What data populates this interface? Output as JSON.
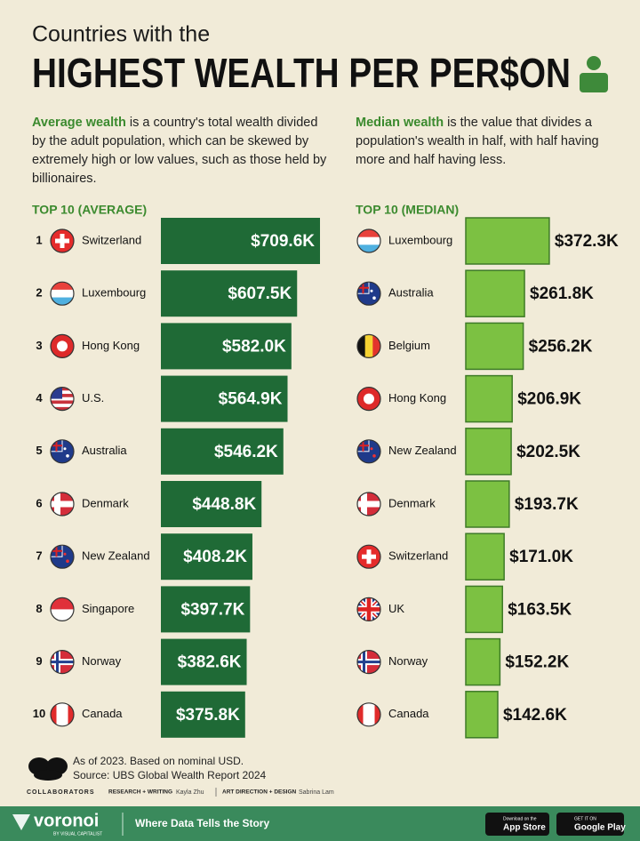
{
  "header": {
    "kicker": "Countries with the",
    "title": "HIGHEST WEALTH PER PER$ON"
  },
  "descriptions": [
    {
      "term": "Average wealth",
      "text": " is a country's total wealth divided by the adult population, which can be skewed by extremely high or low values, such as those held by billionaires."
    },
    {
      "term": "Median wealth",
      "text": " is the value that divides a population's wealth in half, with half having more and half having less."
    }
  ],
  "chart_data": [
    {
      "type": "bar",
      "orientation": "horizontal",
      "title": "TOP 10 (AVERAGE)",
      "ranks": [
        1,
        2,
        3,
        4,
        5,
        6,
        7,
        8,
        9,
        10
      ],
      "categories": [
        "Switzerland",
        "Luxembourg",
        "Hong Kong",
        "U.S.",
        "Australia",
        "Denmark",
        "New Zealand",
        "Singapore",
        "Norway",
        "Canada"
      ],
      "values": [
        709.6,
        607.5,
        582.0,
        564.9,
        546.2,
        448.8,
        408.2,
        397.7,
        382.6,
        375.8
      ],
      "value_labels": [
        "$709.6K",
        "$607.5K",
        "$582.0K",
        "$564.9K",
        "$546.2K",
        "$448.8K",
        "$408.2K",
        "$397.7K",
        "$382.6K",
        "$375.8K"
      ],
      "color": "#1f6a36",
      "label_position": "inside"
    },
    {
      "type": "bar",
      "orientation": "horizontal",
      "title": "TOP 10 (MEDIAN)",
      "categories": [
        "Luxembourg",
        "Australia",
        "Belgium",
        "Hong Kong",
        "New Zealand",
        "Denmark",
        "Switzerland",
        "UK",
        "Norway",
        "Canada"
      ],
      "values": [
        372.3,
        261.8,
        256.2,
        206.9,
        202.5,
        193.7,
        171.0,
        163.5,
        152.2,
        142.6
      ],
      "value_labels": [
        "$372.3K",
        "$261.8K",
        "$256.2K",
        "$206.9K",
        "$202.5K",
        "$193.7K",
        "$171.0K",
        "$163.5K",
        "$152.2K",
        "$142.6K"
      ],
      "color": "#7cc142",
      "edge_color": "#3e7b27",
      "label_position": "outside"
    }
  ],
  "footer": {
    "note": "As of 2023. Based on nominal USD.",
    "source": "Source: UBS Global Wealth Report 2024",
    "collaborators": "COLLABORATORS",
    "research_label": "RESEARCH + WRITING",
    "research_name": "Kayla Zhu",
    "design_label": "ART DIRECTION + DESIGN",
    "design_name": "Sabrina Lam"
  },
  "brand": {
    "name": "voronoi",
    "byline": "BY VISUAL CAPITALIST",
    "tagline": "Where Data Tells the Story",
    "app_store_small": "Download on the",
    "app_store": "App Store",
    "google_small": "GET IT ON",
    "google": "Google Play"
  }
}
